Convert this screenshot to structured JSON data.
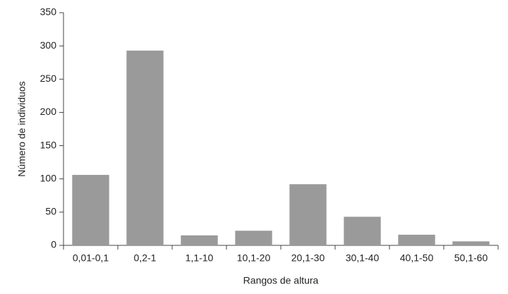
{
  "chart_data": {
    "type": "bar",
    "x_label": "Rangos de altura",
    "y_label": "Número de individuos",
    "categories": [
      "0,01-0,1",
      "0,2-1",
      "1,1-10",
      "10,1-20",
      "20,1-30",
      "30,1-40",
      "40,1-50",
      "50,1-60"
    ],
    "values": [
      106,
      293,
      15,
      22,
      92,
      43,
      16,
      6
    ],
    "color": "#9a9a9a",
    "ylim": [
      0,
      350
    ],
    "yticks": [
      0,
      50,
      100,
      150,
      200,
      250,
      300,
      350
    ],
    "grid": false
  }
}
